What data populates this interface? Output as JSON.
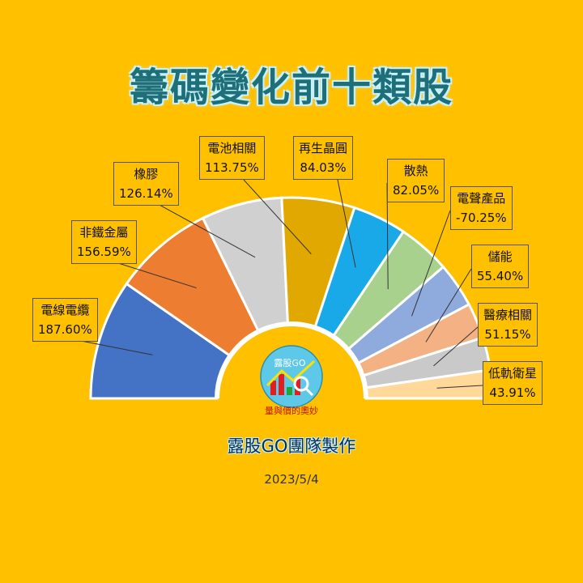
{
  "title": "籌碼變化前十類股",
  "footer": "露股GO團隊製作",
  "date": "2023/5/4",
  "logo": {
    "top_text": "露股GO",
    "bottom_text": "量與價的奧妙"
  },
  "chart_data": {
    "type": "pie",
    "subtype": "half-donut",
    "categories": [
      "電線電纜",
      "非鐵金屬",
      "橡膠",
      "電池相關",
      "再生晶圓",
      "散熱",
      "電聲產品",
      "儲能",
      "醫療相關",
      "低軌衛星"
    ],
    "labels": [
      "187.60%",
      "156.59%",
      "126.14%",
      "113.75%",
      "84.03%",
      "82.05%",
      "-70.25%",
      "55.40%",
      "51.15%",
      "43.91%"
    ],
    "values": [
      187.6,
      156.59,
      126.14,
      113.75,
      84.03,
      82.05,
      70.25,
      55.4,
      51.15,
      43.91
    ],
    "colors": [
      "#4472C4",
      "#ED7D31",
      "#D0D0D0",
      "#E0A800",
      "#1AA9E8",
      "#A9D18E",
      "#8FAADC",
      "#F4B183",
      "#C9C9C9",
      "#FFD89A"
    ]
  }
}
